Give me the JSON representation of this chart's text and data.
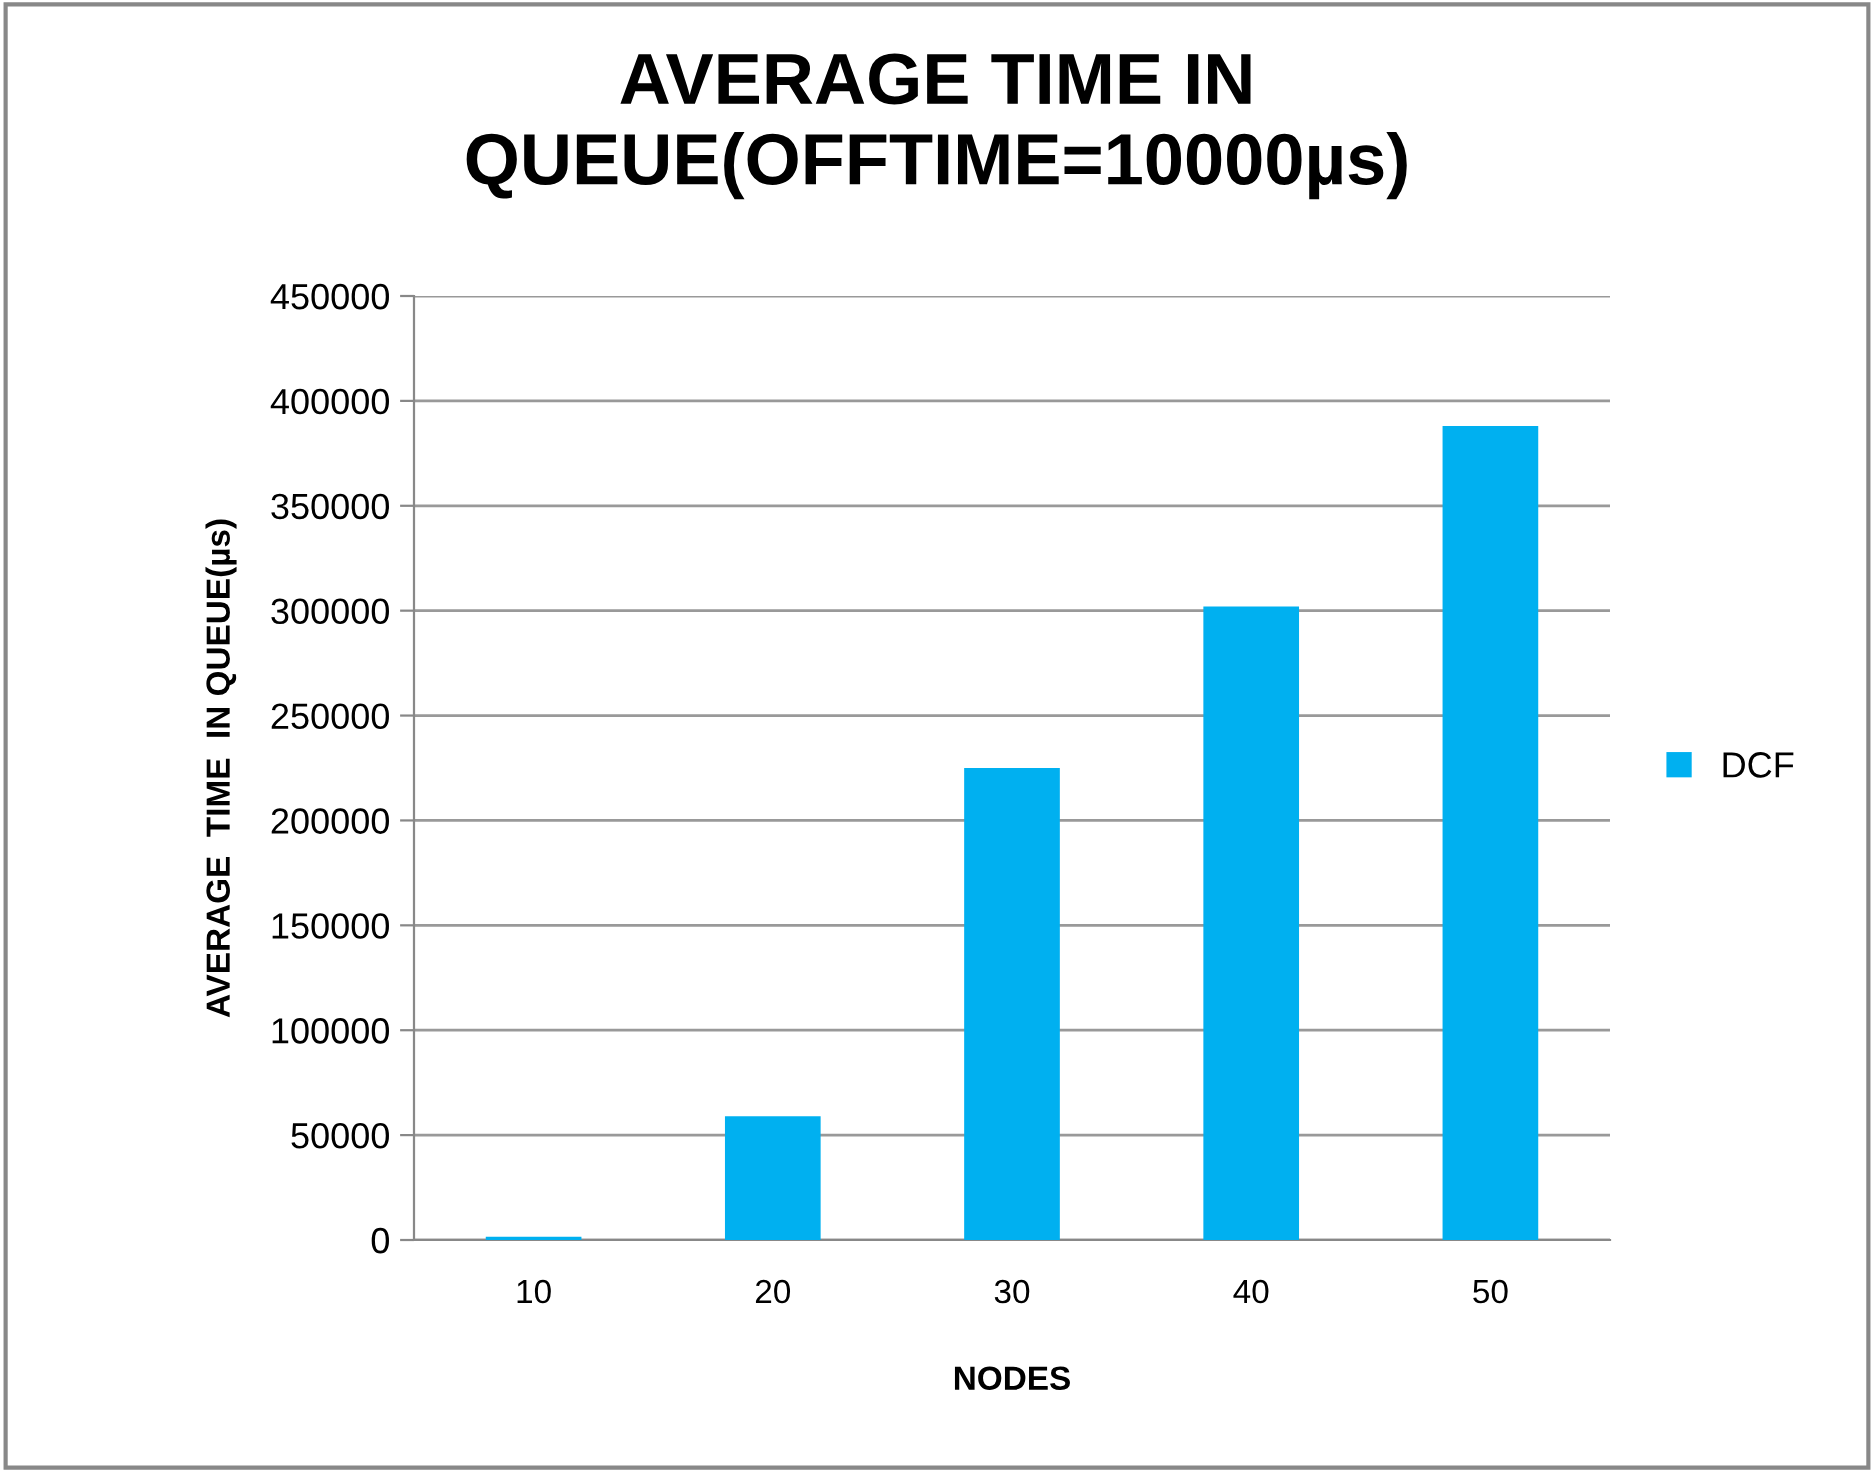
{
  "chart_data": {
    "type": "bar",
    "title": "AVERAGE TIME IN\nQUEUE(OFFTIME=10000µs)",
    "xlabel": "NODES",
    "ylabel": "AVERAGE  TIME  IN QUEUE(µs)",
    "categories": [
      "10",
      "20",
      "30",
      "40",
      "50"
    ],
    "series": [
      {
        "name": "DCF",
        "color": "#00b0f0",
        "values": [
          1500,
          59000,
          225000,
          302000,
          388000
        ]
      }
    ],
    "ylim": [
      0,
      450000
    ],
    "yticks": [
      0,
      50000,
      100000,
      150000,
      200000,
      250000,
      300000,
      350000,
      400000,
      450000
    ],
    "grid": "y",
    "legend": "right"
  }
}
